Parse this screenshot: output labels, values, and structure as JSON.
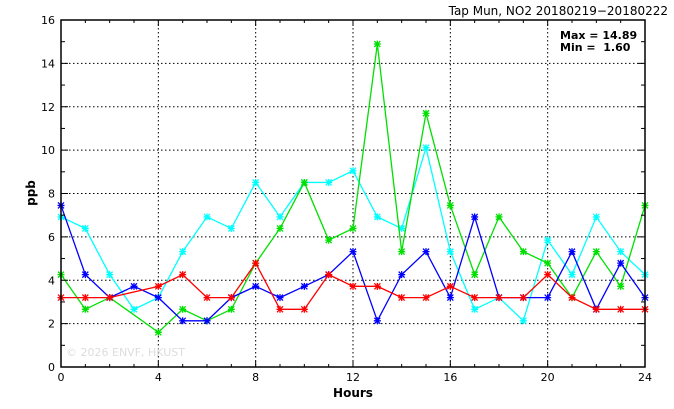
{
  "chart_data": {
    "type": "line",
    "title": "Tap Mun, NO2 20180219−20180222",
    "xlabel": "Hours",
    "ylabel": "ppb",
    "xlim": [
      0,
      24
    ],
    "ylim": [
      0,
      16
    ],
    "xticks": [
      0,
      4,
      8,
      12,
      16,
      20,
      24
    ],
    "yticks": [
      0,
      2,
      4,
      6,
      8,
      10,
      12,
      14,
      16
    ],
    "grid": true,
    "stats": {
      "max_label": "Max = 14.89",
      "min_label": "Min =  1.60"
    },
    "watermark": "© 2026  ENVF, HKUST",
    "x": [
      0,
      1,
      2,
      3,
      4,
      5,
      6,
      7,
      8,
      9,
      10,
      11,
      12,
      13,
      14,
      15,
      16,
      17,
      18,
      19,
      20,
      21,
      22,
      23,
      24
    ],
    "series": [
      {
        "name": "cyan",
        "color": "#00ffff",
        "values": [
          6.92,
          6.39,
          4.26,
          2.66,
          3.2,
          5.32,
          6.92,
          6.39,
          8.51,
          6.92,
          8.51,
          8.51,
          9.05,
          6.92,
          6.39,
          10.11,
          5.32,
          2.66,
          3.2,
          2.13,
          5.85,
          4.26,
          6.92,
          5.32,
          4.26
        ]
      },
      {
        "name": "green",
        "color": "#00e000",
        "values": [
          4.26,
          2.66,
          3.2,
          null,
          1.6,
          2.66,
          2.13,
          2.66,
          4.79,
          6.39,
          8.51,
          5.85,
          6.39,
          14.89,
          5.32,
          11.7,
          7.45,
          4.26,
          6.92,
          5.32,
          4.79,
          3.2,
          5.32,
          3.72,
          7.45
        ]
      },
      {
        "name": "blue",
        "color": "#0000ff",
        "values": [
          7.45,
          4.26,
          3.2,
          3.72,
          3.2,
          2.13,
          2.13,
          3.2,
          3.72,
          3.2,
          3.72,
          4.26,
          5.32,
          2.13,
          4.26,
          5.32,
          3.2,
          6.92,
          3.2,
          3.2,
          3.2,
          5.32,
          2.66,
          4.79,
          3.2
        ]
      },
      {
        "name": "red",
        "color": "#ff0000",
        "values": [
          3.2,
          3.2,
          3.2,
          null,
          3.72,
          4.26,
          3.2,
          3.2,
          4.79,
          2.66,
          2.66,
          4.26,
          3.72,
          3.72,
          3.2,
          3.2,
          3.72,
          3.2,
          3.2,
          3.2,
          4.26,
          3.2,
          2.66,
          2.66,
          2.66
        ]
      }
    ]
  }
}
